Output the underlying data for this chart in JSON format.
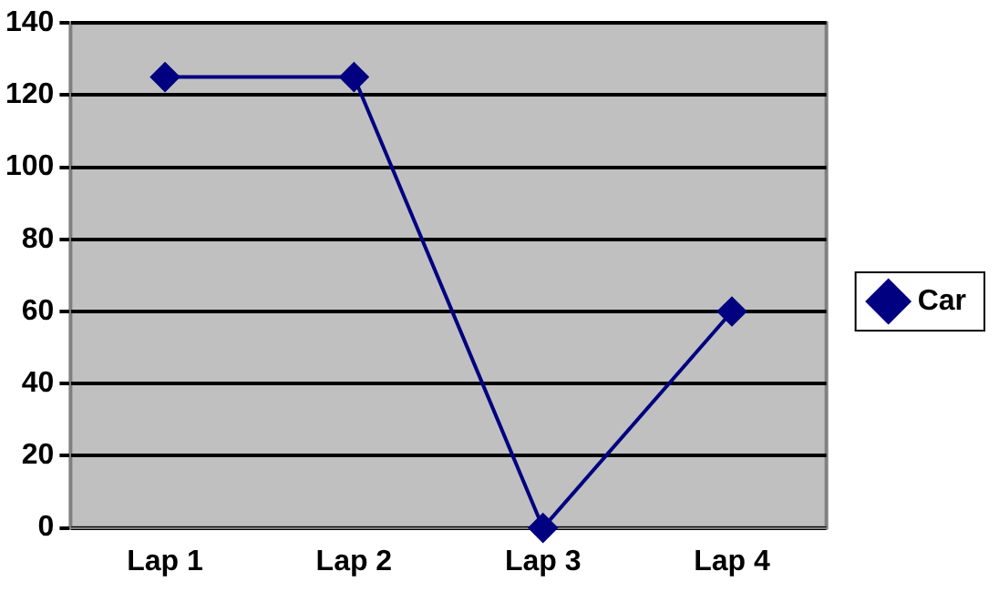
{
  "chart_data": {
    "type": "line",
    "categories": [
      "Lap 1",
      "Lap 2",
      "Lap 3",
      "Lap 4"
    ],
    "series": [
      {
        "name": "Car",
        "color": "#000080",
        "values": [
          125,
          125,
          0,
          60
        ]
      }
    ],
    "ylim": [
      0,
      140
    ],
    "yticks": [
      0,
      20,
      40,
      60,
      80,
      100,
      120,
      140
    ],
    "grid": "y",
    "legend": "right",
    "marker": "diamond",
    "line_style": "solid"
  }
}
